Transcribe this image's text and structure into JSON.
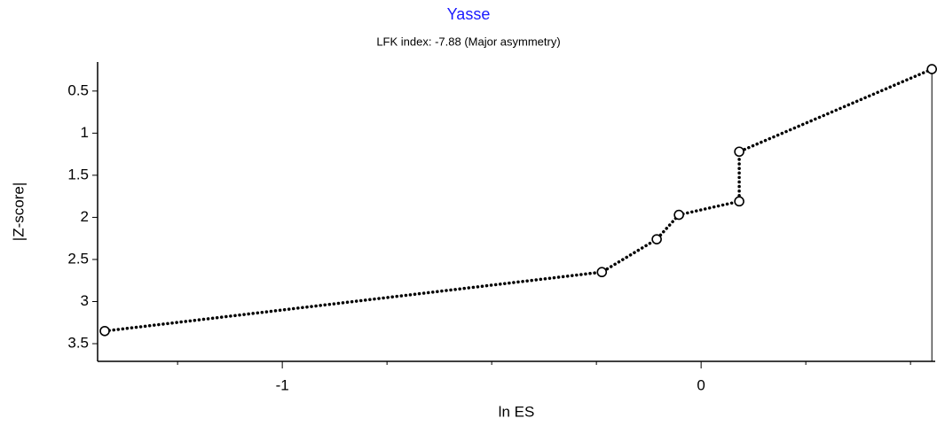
{
  "chart_data": {
    "type": "line",
    "title": "Yasse",
    "subtitle": "LFK index: -7.88 (Major asymmetry)",
    "x_label": "ln ES",
    "y_label": "|Z-score|",
    "x": [
      -1.424,
      -0.237,
      -0.106,
      -0.053,
      0.091,
      0.091,
      0.551
    ],
    "series": [
      {
        "color": "#000000",
        "values": [
          3.35,
          2.65,
          2.26,
          1.97,
          1.81,
          1.22,
          0.24
        ]
      }
    ],
    "xlim": [
      -1.441,
      0.559
    ],
    "xticks": [
      -1,
      0
    ],
    "xminorticks": [
      -1.25,
      -0.75,
      -0.5,
      -0.25,
      0.25,
      0.5
    ],
    "ylim": [
      0.155,
      3.71
    ],
    "yticks": [
      0.5,
      1,
      1.5,
      2,
      2.5,
      3,
      3.5
    ],
    "y_inverted": true,
    "title_color": "#1a1aff"
  }
}
